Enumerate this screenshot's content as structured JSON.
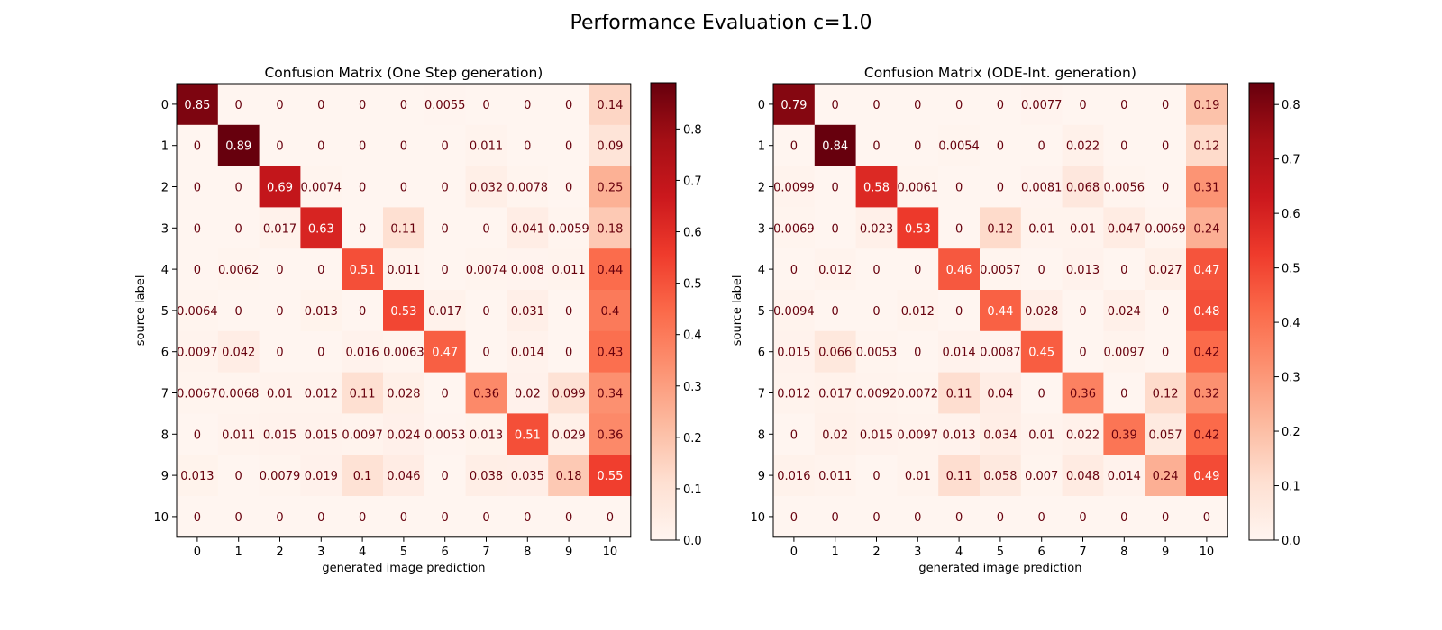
{
  "suptitle": "Performance Evaluation c=1.0",
  "chart_data": [
    {
      "type": "heatmap",
      "title": "Confusion Matrix (One Step generation)",
      "xlabel": "generated image prediction",
      "ylabel": "source label",
      "x_categories": [
        "0",
        "1",
        "2",
        "3",
        "4",
        "5",
        "6",
        "7",
        "8",
        "9",
        "10"
      ],
      "y_categories": [
        "0",
        "1",
        "2",
        "3",
        "4",
        "5",
        "6",
        "7",
        "8",
        "9",
        "10"
      ],
      "colormap": "Reds",
      "colorbar_range": [
        0,
        0.89
      ],
      "colorbar_ticks": [
        "0.0",
        "0.1",
        "0.2",
        "0.3",
        "0.4",
        "0.5",
        "0.6",
        "0.7",
        "0.8"
      ],
      "values": [
        [
          "0.85",
          "0",
          "0",
          "0",
          "0",
          "0",
          "0.0055",
          "0",
          "0",
          "0",
          "0.14"
        ],
        [
          "0",
          "0.89",
          "0",
          "0",
          "0",
          "0",
          "0",
          "0.011",
          "0",
          "0",
          "0.09"
        ],
        [
          "0",
          "0",
          "0.69",
          "0.0074",
          "0",
          "0",
          "0",
          "0.032",
          "0.0078",
          "0",
          "0.25"
        ],
        [
          "0",
          "0",
          "0.017",
          "0.63",
          "0",
          "0.11",
          "0",
          "0",
          "0.041",
          "0.0059",
          "0.18"
        ],
        [
          "0",
          "0.0062",
          "0",
          "0",
          "0.51",
          "0.011",
          "0",
          "0.0074",
          "0.008",
          "0.011",
          "0.44"
        ],
        [
          "0.0064",
          "0",
          "0",
          "0.013",
          "0",
          "0.53",
          "0.017",
          "0",
          "0.031",
          "0",
          "0.4"
        ],
        [
          "0.0097",
          "0.042",
          "0",
          "0",
          "0.016",
          "0.0063",
          "0.47",
          "0",
          "0.014",
          "0",
          "0.43"
        ],
        [
          "0.0067",
          "0.0068",
          "0.01",
          "0.012",
          "0.11",
          "0.028",
          "0",
          "0.36",
          "0.02",
          "0.099",
          "0.34"
        ],
        [
          "0",
          "0.011",
          "0.015",
          "0.015",
          "0.0097",
          "0.024",
          "0.0053",
          "0.013",
          "0.51",
          "0.029",
          "0.36"
        ],
        [
          "0.013",
          "0",
          "0.0079",
          "0.019",
          "0.1",
          "0.046",
          "0",
          "0.038",
          "0.035",
          "0.18",
          "0.55"
        ],
        [
          "0",
          "0",
          "0",
          "0",
          "0",
          "0",
          "0",
          "0",
          "0",
          "0",
          "0"
        ]
      ]
    },
    {
      "type": "heatmap",
      "title": "Confusion Matrix (ODE-Int. generation)",
      "xlabel": "generated image prediction",
      "ylabel": "source label",
      "x_categories": [
        "0",
        "1",
        "2",
        "3",
        "4",
        "5",
        "6",
        "7",
        "8",
        "9",
        "10"
      ],
      "y_categories": [
        "0",
        "1",
        "2",
        "3",
        "4",
        "5",
        "6",
        "7",
        "8",
        "9",
        "10"
      ],
      "colormap": "Reds",
      "colorbar_range": [
        0,
        0.84
      ],
      "colorbar_ticks": [
        "0.0",
        "0.1",
        "0.2",
        "0.3",
        "0.4",
        "0.5",
        "0.6",
        "0.7",
        "0.8"
      ],
      "values": [
        [
          "0.79",
          "0",
          "0",
          "0",
          "0",
          "0",
          "0.0077",
          "0",
          "0",
          "0",
          "0.19"
        ],
        [
          "0",
          "0.84",
          "0",
          "0",
          "0.0054",
          "0",
          "0",
          "0.022",
          "0",
          "0",
          "0.12"
        ],
        [
          "0.0099",
          "0",
          "0.58",
          "0.0061",
          "0",
          "0",
          "0.0081",
          "0.068",
          "0.0056",
          "0",
          "0.31"
        ],
        [
          "0.0069",
          "0",
          "0.023",
          "0.53",
          "0",
          "0.12",
          "0.01",
          "0.01",
          "0.047",
          "0.0069",
          "0.24"
        ],
        [
          "0",
          "0.012",
          "0",
          "0",
          "0.46",
          "0.0057",
          "0",
          "0.013",
          "0",
          "0.027",
          "0.47"
        ],
        [
          "0.0094",
          "0",
          "0",
          "0.012",
          "0",
          "0.44",
          "0.028",
          "0",
          "0.024",
          "0",
          "0.48"
        ],
        [
          "0.015",
          "0.066",
          "0.0053",
          "0",
          "0.014",
          "0.0087",
          "0.45",
          "0",
          "0.0097",
          "0",
          "0.42"
        ],
        [
          "0.012",
          "0.017",
          "0.0092",
          "0.0072",
          "0.11",
          "0.04",
          "0",
          "0.36",
          "0",
          "0.12",
          "0.32"
        ],
        [
          "0",
          "0.02",
          "0.015",
          "0.0097",
          "0.013",
          "0.034",
          "0.01",
          "0.022",
          "0.39",
          "0.057",
          "0.42"
        ],
        [
          "0.016",
          "0.011",
          "0",
          "0.01",
          "0.11",
          "0.058",
          "0.007",
          "0.048",
          "0.014",
          "0.24",
          "0.49"
        ],
        [
          "0",
          "0",
          "0",
          "0",
          "0",
          "0",
          "0",
          "0",
          "0",
          "0",
          "0"
        ]
      ]
    }
  ]
}
